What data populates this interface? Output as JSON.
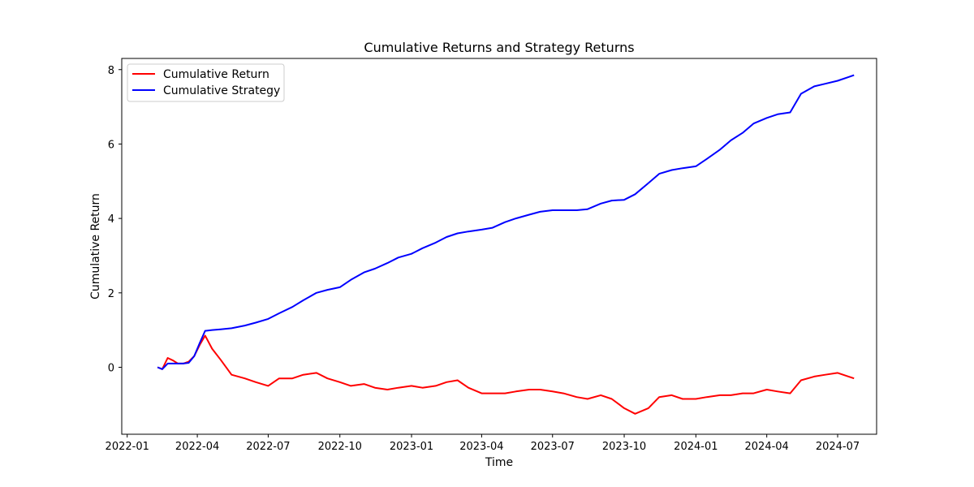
{
  "chart_data": {
    "type": "line",
    "title": "Cumulative Returns and Strategy Returns",
    "xlabel": "Time",
    "ylabel": "Cumulative Return",
    "x_ticks": [
      "2022-01",
      "2022-04",
      "2022-07",
      "2022-10",
      "2023-01",
      "2023-04",
      "2023-07",
      "2023-10",
      "2024-01",
      "2024-04",
      "2024-07"
    ],
    "y_ticks": [
      0,
      2,
      4,
      6,
      8
    ],
    "xlim": [
      "2021-12-25",
      "2024-08-20"
    ],
    "ylim": [
      -1.8,
      8.3
    ],
    "grid": false,
    "legend": "top-left",
    "x": [
      "2022-02-09",
      "2022-02-15",
      "2022-02-22",
      "2022-03-01",
      "2022-03-07",
      "2022-03-14",
      "2022-03-21",
      "2022-03-28",
      "2022-04-04",
      "2022-04-11",
      "2022-04-20",
      "2022-05-01",
      "2022-05-15",
      "2022-06-01",
      "2022-06-15",
      "2022-07-01",
      "2022-07-15",
      "2022-08-01",
      "2022-08-15",
      "2022-09-01",
      "2022-09-15",
      "2022-10-01",
      "2022-10-15",
      "2022-11-01",
      "2022-11-15",
      "2022-12-01",
      "2022-12-15",
      "2023-01-01",
      "2023-01-15",
      "2023-02-01",
      "2023-02-15",
      "2023-03-01",
      "2023-03-15",
      "2023-04-01",
      "2023-04-15",
      "2023-05-01",
      "2023-05-15",
      "2023-06-01",
      "2023-06-15",
      "2023-07-01",
      "2023-07-15",
      "2023-08-01",
      "2023-08-15",
      "2023-09-01",
      "2023-09-15",
      "2023-10-01",
      "2023-10-15",
      "2023-11-01",
      "2023-11-15",
      "2023-12-01",
      "2023-12-15",
      "2024-01-01",
      "2024-01-15",
      "2024-02-01",
      "2024-02-15",
      "2024-03-01",
      "2024-03-15",
      "2024-04-01",
      "2024-04-15",
      "2024-05-01",
      "2024-05-15",
      "2024-06-01",
      "2024-06-15",
      "2024-07-01",
      "2024-07-15",
      "2024-07-22"
    ],
    "series": [
      {
        "name": "Cumulative Return",
        "color": "#ff0000",
        "values": [
          0.0,
          -0.05,
          0.25,
          0.18,
          0.1,
          0.1,
          0.15,
          0.3,
          0.6,
          0.85,
          0.5,
          0.2,
          -0.2,
          -0.3,
          -0.4,
          -0.5,
          -0.3,
          -0.3,
          -0.2,
          -0.15,
          -0.3,
          -0.4,
          -0.5,
          -0.45,
          -0.55,
          -0.6,
          -0.55,
          -0.5,
          -0.55,
          -0.5,
          -0.4,
          -0.35,
          -0.55,
          -0.7,
          -0.7,
          -0.7,
          -0.65,
          -0.6,
          -0.6,
          -0.65,
          -0.7,
          -0.8,
          -0.85,
          -0.75,
          -0.85,
          -1.1,
          -1.25,
          -1.1,
          -0.8,
          -0.75,
          -0.85,
          -0.85,
          -0.8,
          -0.75,
          -0.75,
          -0.7,
          -0.7,
          -0.6,
          -0.65,
          -0.7,
          -0.35,
          -0.25,
          -0.2,
          -0.15,
          -0.25,
          -0.3
        ]
      },
      {
        "name": "Cumulative Strategy",
        "color": "#0000ff",
        "values": [
          0.0,
          -0.05,
          0.1,
          0.1,
          0.1,
          0.1,
          0.12,
          0.3,
          0.65,
          0.98,
          1.0,
          1.02,
          1.05,
          1.12,
          1.2,
          1.3,
          1.45,
          1.62,
          1.8,
          2.0,
          2.08,
          2.15,
          2.35,
          2.55,
          2.65,
          2.8,
          2.95,
          3.05,
          3.2,
          3.35,
          3.5,
          3.6,
          3.65,
          3.7,
          3.75,
          3.9,
          4.0,
          4.1,
          4.18,
          4.22,
          4.22,
          4.22,
          4.25,
          4.4,
          4.48,
          4.5,
          4.65,
          4.95,
          5.2,
          5.3,
          5.35,
          5.4,
          5.6,
          5.85,
          6.1,
          6.3,
          6.55,
          6.7,
          6.8,
          6.85,
          7.35,
          7.55,
          7.62,
          7.7,
          7.8,
          7.85
        ]
      }
    ]
  }
}
